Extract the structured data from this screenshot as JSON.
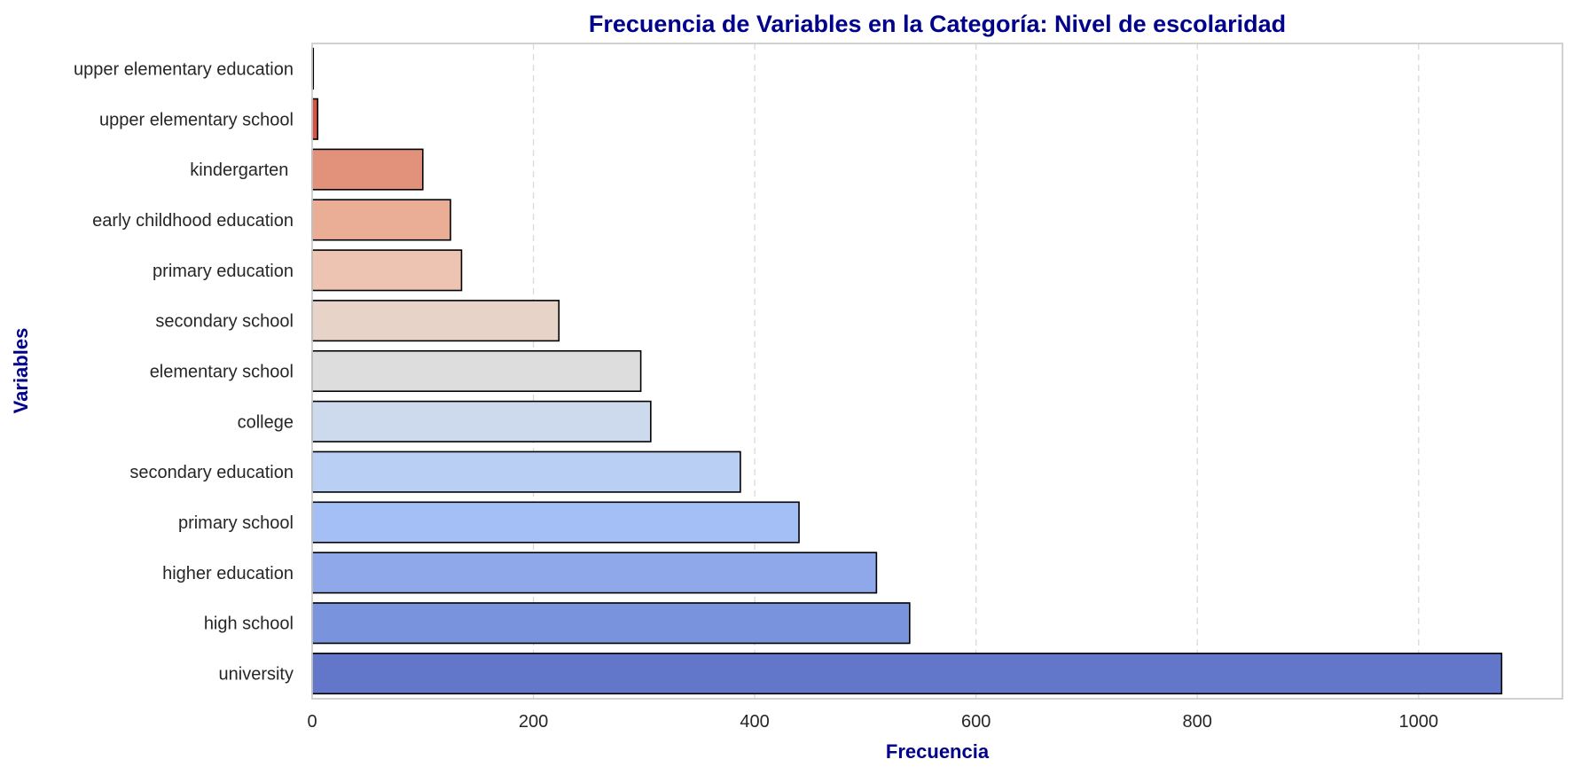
{
  "chart_data": {
    "type": "bar",
    "orientation": "horizontal",
    "title": "Frecuencia de Variables en la Categoría: Nivel de escolaridad",
    "xlabel": "Frecuencia",
    "ylabel": "Variables",
    "xlim": [
      0,
      1130
    ],
    "xticks": [
      0,
      200,
      400,
      600,
      800,
      1000
    ],
    "grid": "x, dashed",
    "label_color": "#00008b",
    "categories": [
      "upper elementary education",
      "upper elementary school",
      "kindergarten ",
      "early childhood education",
      "primary education",
      "secondary school",
      "elementary school",
      "college",
      "secondary education",
      "primary school",
      "higher education",
      "high school",
      "university"
    ],
    "values": [
      1,
      5,
      100,
      125,
      135,
      223,
      297,
      306,
      387,
      440,
      510,
      540,
      1075
    ],
    "colors": [
      "#b40426",
      "#d65244",
      "#e2917a",
      "#eaad96",
      "#edc4b2",
      "#e8d3c9",
      "#dddddd",
      "#cdd9ec",
      "#b9d0f4",
      "#a3bff6",
      "#8fa8ea",
      "#7993dc",
      "#6277c9"
    ]
  }
}
